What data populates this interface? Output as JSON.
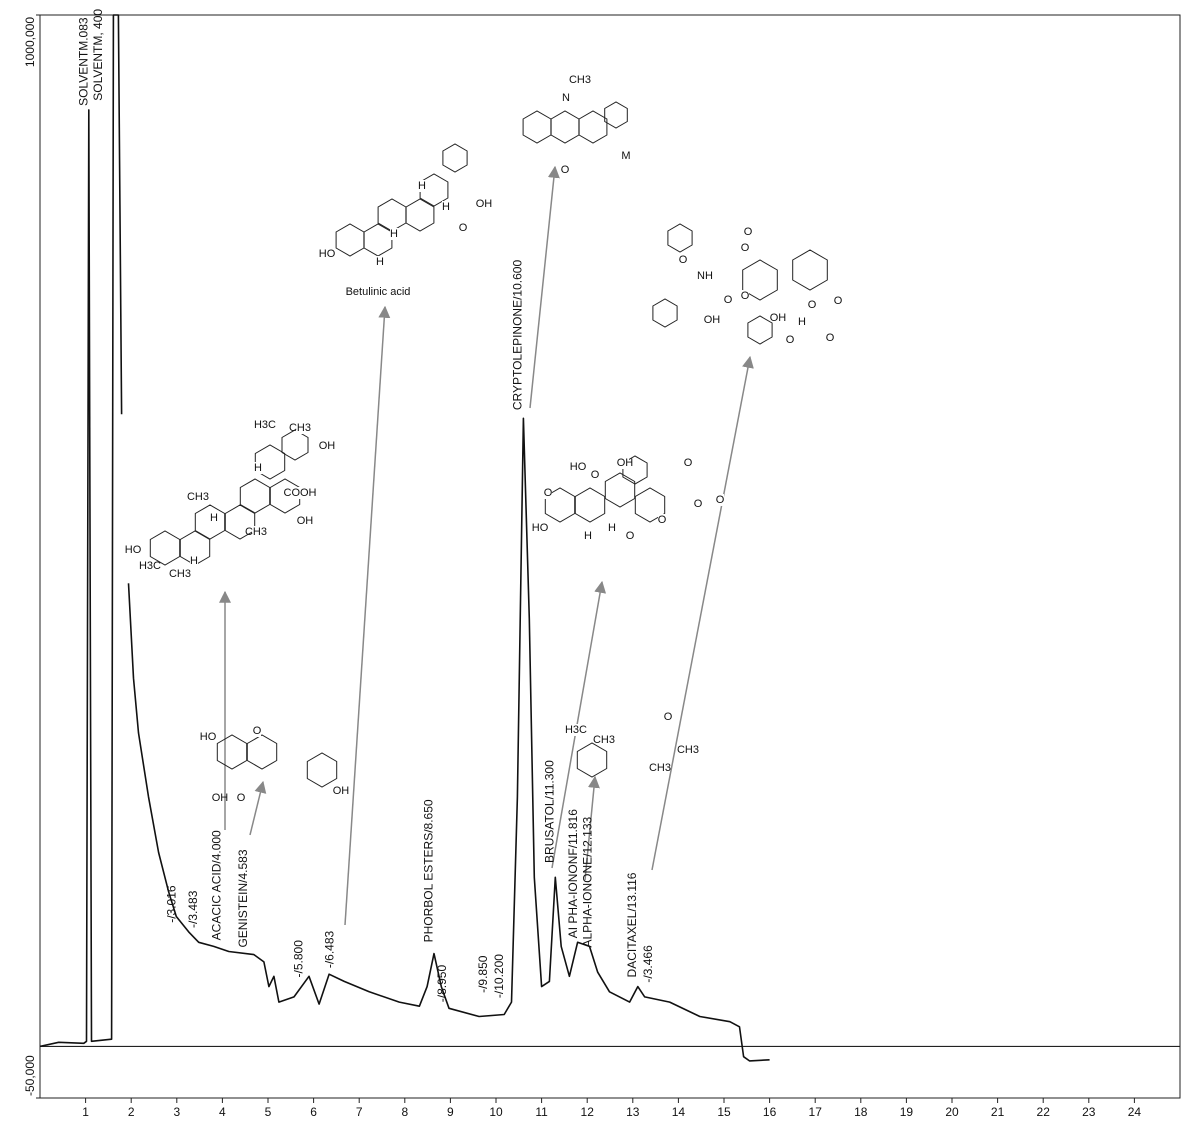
{
  "chart_data": {
    "type": "line",
    "xlim": [
      0,
      25
    ],
    "ylim": [
      -50000,
      1000000
    ],
    "xticks": [
      1,
      2,
      3,
      4,
      5,
      6,
      7,
      8,
      9,
      10,
      11,
      12,
      13,
      14,
      15,
      16,
      17,
      18,
      19,
      20,
      21,
      22,
      23,
      24
    ],
    "yticks": [
      {
        "value": 1000000,
        "label": "1000,000"
      },
      {
        "value": -50000,
        "label": "-50,000"
      }
    ],
    "series": [
      {
        "color": "#111111",
        "x": [
          0,
          0.41,
          0.96,
          1.02,
          1.07,
          1.13,
          1.57,
          1.61,
          1.72,
          1.79,
          1.85,
          1.94,
          2.05,
          2.16,
          2.38,
          2.6,
          2.82,
          2.99,
          3.26,
          3.48,
          3.81,
          4.14,
          4.69,
          4.91,
          5.02,
          5.13,
          5.24,
          5.57,
          5.9,
          6.12,
          6.34,
          6.67,
          7.22,
          7.88,
          8.32,
          8.49,
          8.64,
          8.8,
          8.97,
          9.63,
          10.18,
          10.34,
          10.47,
          10.6,
          10.73,
          10.84,
          11.0,
          11.17,
          11.3,
          11.43,
          11.61,
          11.79,
          12.05,
          12.23,
          12.49,
          12.93,
          13.11,
          13.26,
          13.81,
          14.47,
          15.13,
          15.34,
          15.43,
          15.56,
          16.0
        ],
        "values": [
          0,
          4000,
          3000,
          5000,
          908000,
          5000,
          7000,
          1000000,
          1000000,
          613000,
          null,
          449000,
          357000,
          304000,
          242000,
          188000,
          150000,
          126000,
          111000,
          101000,
          97000,
          92000,
          89000,
          82000,
          58000,
          68000,
          43000,
          48000,
          68000,
          41000,
          70000,
          63000,
          53000,
          43000,
          39000,
          58000,
          90000,
          58000,
          37000,
          29000,
          31000,
          43000,
          242000,
          609000,
          415000,
          164000,
          58000,
          63000,
          164000,
          97000,
          68000,
          101000,
          97000,
          72000,
          53000,
          43000,
          58000,
          48000,
          43000,
          29000,
          24000,
          19000,
          -10000,
          -14000,
          -13000
        ]
      }
    ],
    "annotations": [
      {
        "text": "SOLVENTM.083",
        "x": 1.083,
        "y": 908000
      },
      {
        "text": "SOLVENTM, 400",
        "x": 1.4,
        "y": 913000
      },
      {
        "text": "-/3.016",
        "x": 3.016,
        "y": 116000
      },
      {
        "text": "-/3.483",
        "x": 3.483,
        "y": 111000
      },
      {
        "text": "ACACIC ACID/4.000",
        "x": 4.0,
        "y": 99000
      },
      {
        "text": "GENISTEIN/4.583",
        "x": 4.583,
        "y": 92000
      },
      {
        "text": "-/5.800",
        "x": 5.8,
        "y": 63000
      },
      {
        "text": "-/6.483",
        "x": 6.483,
        "y": 72000
      },
      {
        "text": "PHORBOL ESTERS/8.650",
        "x": 8.65,
        "y": 97000
      },
      {
        "text": "-/8.950",
        "x": 8.95,
        "y": 39000
      },
      {
        "text": "-/9.850",
        "x": 9.85,
        "y": 48000
      },
      {
        "text": "-/10.200",
        "x": 10.2,
        "y": 43000
      },
      {
        "text": "CRYPTOLEPINONE/10.600",
        "x": 10.6,
        "y": 613000
      },
      {
        "text": "BRUSATOL/11.300",
        "x": 11.3,
        "y": 174000
      },
      {
        "text": "AI PHA-IONONF/11.816",
        "x": 11.816,
        "y": 101000
      },
      {
        "text": "ALPHA-IONONE/12.133",
        "x": 12.133,
        "y": 92000
      },
      {
        "text": "DACITAXEL/13.116",
        "x": 13.116,
        "y": 63000
      },
      {
        "text": "-/3.466",
        "x": 13.466,
        "y": 58000
      }
    ]
  },
  "structures": [
    {
      "labels": [
        "H3C",
        "CH3",
        "OH",
        "CH3",
        "COOH",
        "OH",
        "CH3",
        "HO",
        "H3C",
        "CH3",
        "H",
        "H",
        "H"
      ]
    },
    {
      "labels": [
        "HO",
        "O",
        "OH",
        "O",
        "OH"
      ]
    },
    {
      "labels": [
        "OH",
        "O",
        "HO",
        "H",
        "H",
        "H",
        "H",
        "Betulinic acid"
      ]
    },
    {
      "labels": [
        "N",
        "CH3",
        "O",
        "M"
      ]
    },
    {
      "labels": [
        "HO",
        "OH",
        "O",
        "O",
        "O",
        "O",
        "HO",
        "H",
        "H",
        "O",
        "O",
        "O"
      ]
    },
    {
      "labels": [
        "H3C",
        "CH3",
        "O",
        "CH3",
        "CH3"
      ]
    },
    {
      "labels": [
        "O",
        "O",
        "O",
        "NH",
        "OH",
        "O",
        "O",
        "OH",
        "O",
        "O",
        "H",
        "O",
        "O"
      ]
    }
  ]
}
